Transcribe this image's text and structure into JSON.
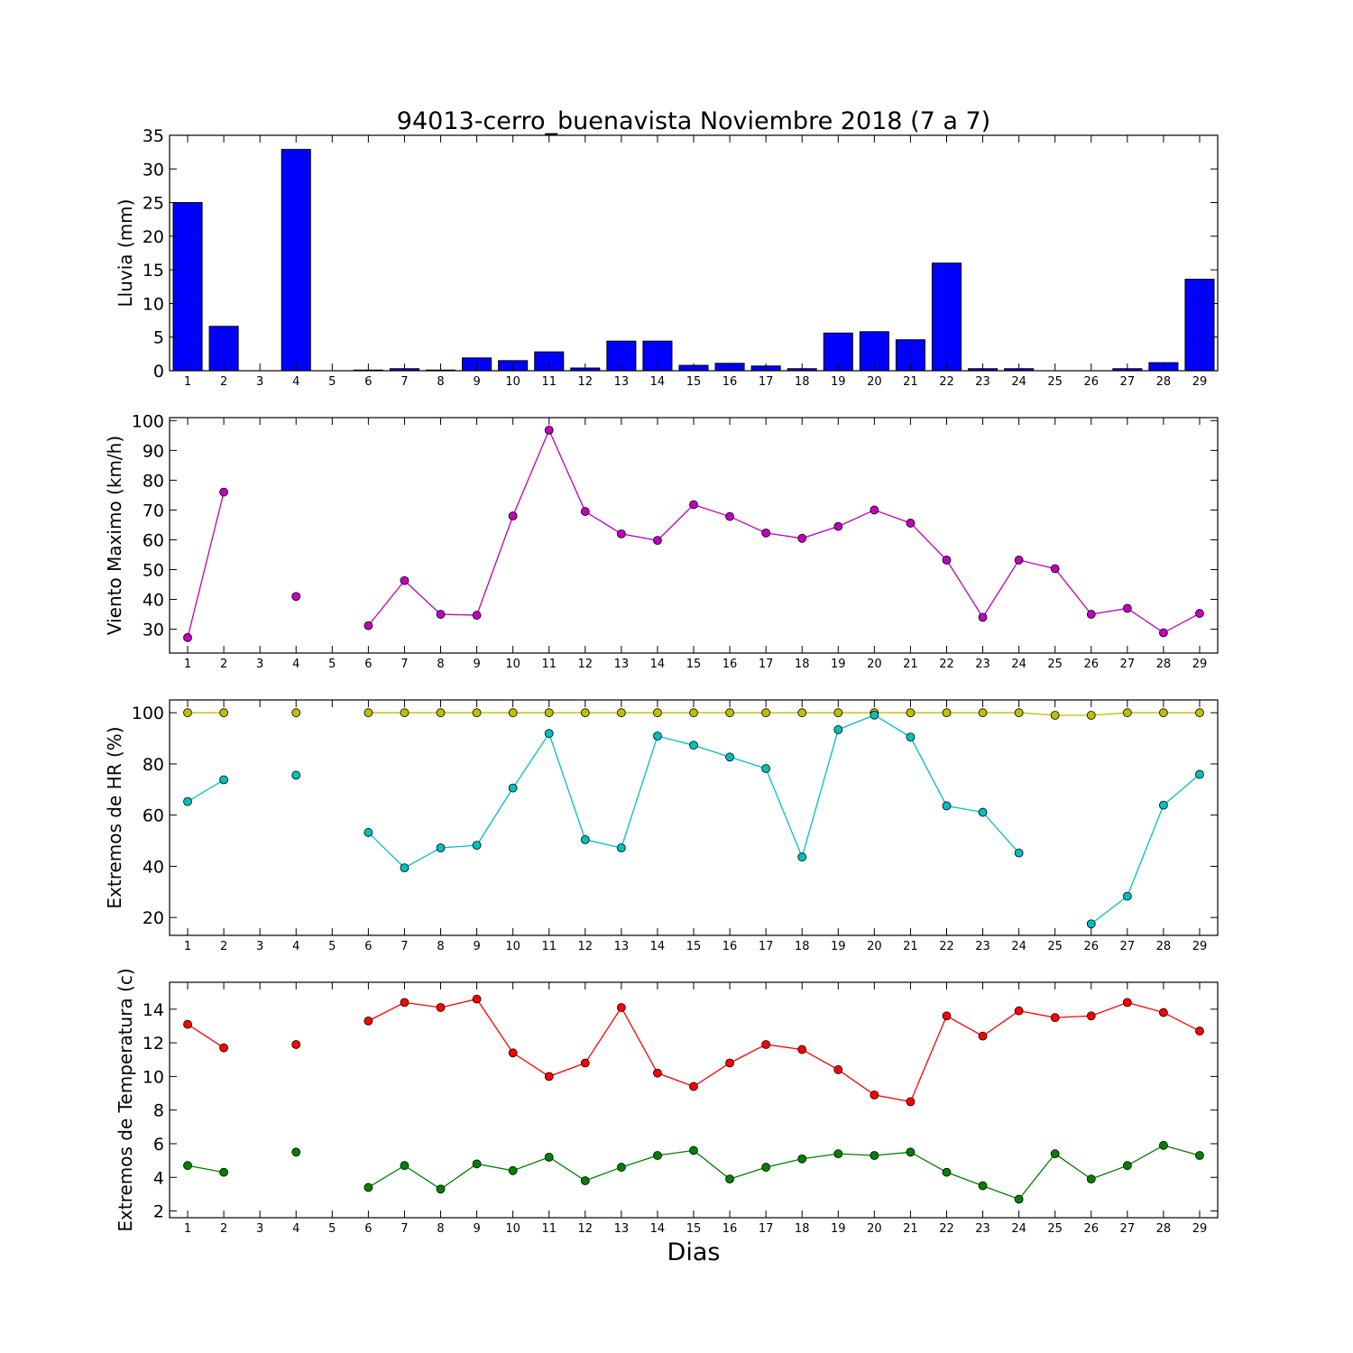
{
  "title": "94013-cerro_buenavista Noviembre 2018  (7 a 7)",
  "xlabel": "Dias",
  "chart_data": [
    {
      "type": "bar",
      "ylabel": "Lluvia (mm)",
      "ylim": [
        0,
        35
      ],
      "yticks": [
        0,
        5,
        10,
        15,
        20,
        25,
        30,
        35
      ],
      "categories": [
        1,
        2,
        3,
        4,
        5,
        6,
        7,
        8,
        9,
        10,
        11,
        12,
        13,
        14,
        15,
        16,
        17,
        18,
        19,
        20,
        21,
        22,
        23,
        24,
        25,
        26,
        27,
        28,
        29
      ],
      "values": [
        25.0,
        6.6,
        0,
        32.9,
        0,
        0.1,
        0.3,
        0.1,
        1.9,
        1.5,
        2.8,
        0.4,
        4.4,
        4.4,
        0.8,
        1.1,
        0.7,
        0.3,
        5.6,
        5.8,
        4.6,
        16.0,
        0.3,
        0.3,
        0,
        0,
        0.3,
        1.2,
        13.6
      ],
      "color": "#0000ff"
    },
    {
      "type": "line",
      "ylabel": "Viento Maximo (km/h)",
      "ylim": [
        22,
        101
      ],
      "yticks": [
        30,
        40,
        50,
        60,
        70,
        80,
        90,
        100
      ],
      "x": [
        1,
        2,
        3,
        4,
        5,
        6,
        7,
        8,
        9,
        10,
        11,
        12,
        13,
        14,
        15,
        16,
        17,
        18,
        19,
        20,
        21,
        22,
        23,
        24,
        25,
        26,
        27,
        28,
        29
      ],
      "series": [
        {
          "color": "#bf00bf",
          "values": [
            27.2,
            76.0,
            null,
            41.0,
            null,
            31.2,
            46.3,
            35.0,
            34.7,
            68.0,
            96.8,
            69.5,
            62.0,
            59.8,
            71.8,
            67.8,
            62.3,
            60.5,
            64.5,
            70.0,
            65.6,
            53.2,
            34.0,
            53.2,
            50.3,
            35.0,
            37.0,
            28.8,
            35.3
          ]
        }
      ]
    },
    {
      "type": "line",
      "ylabel": "Extremos de HR (%)",
      "ylim": [
        13,
        105
      ],
      "yticks": [
        20,
        40,
        60,
        80,
        100
      ],
      "x": [
        1,
        2,
        3,
        4,
        5,
        6,
        7,
        8,
        9,
        10,
        11,
        12,
        13,
        14,
        15,
        16,
        17,
        18,
        19,
        20,
        21,
        22,
        23,
        24,
        25,
        26,
        27,
        28,
        29
      ],
      "series": [
        {
          "color": "#bfbf00",
          "values": [
            100,
            100,
            null,
            100,
            null,
            100,
            100,
            100,
            100,
            100,
            100,
            100,
            100,
            100,
            100,
            100,
            100,
            100,
            100,
            100,
            100,
            100,
            100,
            100,
            99,
            99,
            100,
            100,
            100
          ]
        },
        {
          "color": "#00bfbf",
          "values": [
            65.3,
            73.8,
            null,
            75.6,
            null,
            53.2,
            39.4,
            47.2,
            48.2,
            70.6,
            91.9,
            50.4,
            47.2,
            90.9,
            87.3,
            82.7,
            78.2,
            43.6,
            93.4,
            99.1,
            90.5,
            63.6,
            61.1,
            45.2,
            null,
            17.5,
            28.3,
            63.9,
            75.9
          ]
        }
      ]
    },
    {
      "type": "line",
      "ylabel": "Extremos de Temperatura (c)",
      "ylim": [
        1.6,
        15.6
      ],
      "yticks": [
        2,
        4,
        6,
        8,
        10,
        12,
        14
      ],
      "x": [
        1,
        2,
        3,
        4,
        5,
        6,
        7,
        8,
        9,
        10,
        11,
        12,
        13,
        14,
        15,
        16,
        17,
        18,
        19,
        20,
        21,
        22,
        23,
        24,
        25,
        26,
        27,
        28,
        29
      ],
      "series": [
        {
          "color": "#ff0000",
          "values": [
            13.1,
            11.7,
            null,
            11.9,
            null,
            13.3,
            14.4,
            14.1,
            14.6,
            11.4,
            10.0,
            10.8,
            14.1,
            10.2,
            9.4,
            10.8,
            11.9,
            11.6,
            10.4,
            8.9,
            8.5,
            13.6,
            12.4,
            13.9,
            13.5,
            13.6,
            14.4,
            13.8,
            12.7
          ]
        },
        {
          "color": "#008000",
          "values": [
            4.7,
            4.3,
            null,
            5.5,
            null,
            3.4,
            4.7,
            3.3,
            4.8,
            4.4,
            5.2,
            3.8,
            4.6,
            5.3,
            5.6,
            3.9,
            4.6,
            5.1,
            5.4,
            5.3,
            5.5,
            4.3,
            3.5,
            2.7,
            5.4,
            3.9,
            4.7,
            5.9,
            5.3
          ]
        }
      ]
    }
  ]
}
